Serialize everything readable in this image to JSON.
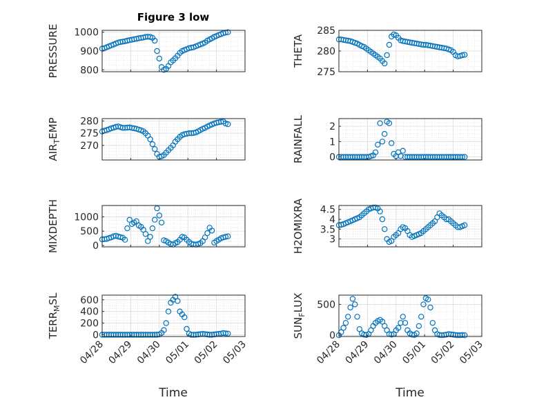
{
  "figure_title": "Figure 3 low",
  "xlabel": "Time",
  "x_tick_labels": [
    "04/28",
    "04/29",
    "04/30",
    "05/01",
    "05/02",
    "05/03"
  ],
  "marker_color": "#0072BD",
  "chart_data": [
    {
      "type": "scatter",
      "name": "PRESSURE",
      "ylabel": "PRESSURE",
      "xlim": [
        0,
        5
      ],
      "ylim": [
        790,
        1010
      ],
      "yticks": [
        800,
        900,
        1000
      ],
      "x": [
        0.0,
        0.08,
        0.16,
        0.24,
        0.32,
        0.4,
        0.48,
        0.56,
        0.64,
        0.72,
        0.8,
        0.88,
        0.96,
        1.04,
        1.12,
        1.2,
        1.28,
        1.36,
        1.44,
        1.52,
        1.6,
        1.68,
        1.76,
        1.84,
        1.92,
        2.0,
        2.08,
        2.16,
        2.24,
        2.32,
        2.4,
        2.48,
        2.56,
        2.64,
        2.72,
        2.8,
        2.88,
        2.96,
        3.04,
        3.12,
        3.2,
        3.28,
        3.36,
        3.44,
        3.52,
        3.6,
        3.68,
        3.76,
        3.84,
        3.92,
        4.0,
        4.08,
        4.16,
        4.24,
        4.32,
        4.4
      ],
      "y": [
        913,
        915,
        920,
        925,
        930,
        935,
        940,
        945,
        948,
        950,
        952,
        955,
        958,
        960,
        963,
        965,
        968,
        970,
        972,
        975,
        976,
        975,
        970,
        955,
        900,
        860,
        815,
        800,
        805,
        820,
        840,
        850,
        862,
        875,
        890,
        900,
        905,
        910,
        915,
        918,
        920,
        925,
        930,
        935,
        940,
        945,
        955,
        962,
        968,
        975,
        980,
        985,
        990,
        995,
        998,
        1000
      ]
    },
    {
      "type": "scatter",
      "name": "THETA",
      "ylabel": "THETA",
      "xlim": [
        0,
        5
      ],
      "ylim": [
        275,
        285
      ],
      "yticks": [
        275,
        280,
        285
      ],
      "x": [
        0.0,
        0.08,
        0.16,
        0.24,
        0.32,
        0.4,
        0.48,
        0.56,
        0.64,
        0.72,
        0.8,
        0.88,
        0.96,
        1.04,
        1.12,
        1.2,
        1.28,
        1.36,
        1.44,
        1.52,
        1.6,
        1.68,
        1.76,
        1.84,
        1.92,
        2.0,
        2.08,
        2.16,
        2.24,
        2.32,
        2.4,
        2.48,
        2.56,
        2.64,
        2.72,
        2.8,
        2.88,
        2.96,
        3.04,
        3.12,
        3.2,
        3.28,
        3.36,
        3.44,
        3.52,
        3.6,
        3.68,
        3.76,
        3.84,
        3.92,
        4.0,
        4.08,
        4.16,
        4.24,
        4.32,
        4.4
      ],
      "y": [
        282.8,
        282.8,
        282.7,
        282.6,
        282.5,
        282.4,
        282.2,
        282.0,
        281.8,
        281.5,
        281.2,
        281.0,
        280.6,
        280.2,
        279.8,
        279.4,
        279.0,
        278.6,
        278.2,
        277.6,
        277.0,
        279.0,
        281.5,
        283.5,
        284.0,
        283.8,
        283.2,
        282.6,
        282.4,
        282.3,
        282.2,
        282.1,
        282.0,
        281.9,
        281.8,
        281.7,
        281.6,
        281.5,
        281.5,
        281.4,
        281.3,
        281.2,
        281.1,
        281.0,
        280.9,
        280.8,
        280.7,
        280.6,
        280.4,
        280.2,
        279.8,
        279.0,
        278.7,
        278.8,
        279.0,
        279.1
      ]
    },
    {
      "type": "scatter",
      "name": "AIR_TEMP",
      "ylabel": "AIR_TEMP",
      "xlim": [
        0,
        5
      ],
      "ylim": [
        264,
        281
      ],
      "yticks": [
        270,
        275,
        280
      ],
      "x": [
        0.0,
        0.08,
        0.16,
        0.24,
        0.32,
        0.4,
        0.48,
        0.56,
        0.64,
        0.72,
        0.8,
        0.88,
        0.96,
        1.04,
        1.12,
        1.2,
        1.28,
        1.36,
        1.44,
        1.52,
        1.6,
        1.68,
        1.76,
        1.84,
        1.92,
        2.0,
        2.08,
        2.16,
        2.24,
        2.32,
        2.4,
        2.48,
        2.56,
        2.64,
        2.72,
        2.8,
        2.88,
        2.96,
        3.04,
        3.12,
        3.2,
        3.28,
        3.36,
        3.44,
        3.52,
        3.6,
        3.68,
        3.76,
        3.84,
        3.92,
        4.0,
        4.08,
        4.16,
        4.24,
        4.32,
        4.4
      ],
      "y": [
        275.7,
        276.0,
        276.3,
        276.6,
        277.0,
        277.3,
        277.6,
        277.8,
        277.5,
        277.2,
        277.2,
        277.3,
        277.4,
        277.2,
        277.0,
        276.8,
        276.5,
        276.2,
        275.8,
        275.0,
        274.0,
        272.5,
        270.5,
        268.5,
        266.5,
        265.3,
        265.5,
        266.0,
        267.0,
        268.0,
        269.0,
        270.0,
        271.5,
        272.5,
        273.5,
        274.2,
        274.6,
        274.8,
        275.0,
        275.0,
        275.1,
        275.3,
        275.8,
        276.3,
        276.8,
        277.2,
        277.7,
        278.2,
        278.6,
        279.0,
        279.3,
        279.5,
        279.7,
        279.8,
        279.0,
        278.7
      ]
    },
    {
      "type": "scatter",
      "name": "RAINFALL",
      "ylabel": "RAINFALL",
      "xlim": [
        0,
        5
      ],
      "ylim": [
        -0.2,
        2.5
      ],
      "yticks": [
        0,
        1,
        2
      ],
      "x": [
        0.0,
        0.08,
        0.16,
        0.24,
        0.32,
        0.4,
        0.48,
        0.56,
        0.64,
        0.72,
        0.8,
        0.88,
        0.96,
        1.04,
        1.12,
        1.2,
        1.28,
        1.36,
        1.44,
        1.52,
        1.6,
        1.68,
        1.76,
        1.84,
        1.92,
        2.0,
        2.08,
        2.16,
        2.24,
        2.32,
        2.4,
        2.48,
        2.56,
        2.64,
        2.72,
        2.8,
        2.88,
        2.96,
        3.04,
        3.12,
        3.2,
        3.28,
        3.36,
        3.44,
        3.52,
        3.6,
        3.68,
        3.76,
        3.84,
        3.92,
        4.0,
        4.08,
        4.16,
        4.24,
        4.32,
        4.4
      ],
      "y": [
        0,
        0,
        0,
        0,
        0,
        0,
        0,
        0,
        0,
        0,
        0,
        0,
        0,
        0,
        0.05,
        0.1,
        0.3,
        0.8,
        2.2,
        1.0,
        1.5,
        2.3,
        2.2,
        0.9,
        0.2,
        0.05,
        0.3,
        0.05,
        0.4,
        0,
        0,
        0,
        0,
        0,
        0,
        0,
        0,
        0,
        0,
        0,
        0,
        0,
        0,
        0,
        0,
        0,
        0,
        0,
        0,
        0,
        0,
        0,
        0,
        0,
        0,
        0
      ]
    },
    {
      "type": "scatter",
      "name": "MIXDEPTH",
      "ylabel": "MIXDEPTH",
      "xlim": [
        0,
        5
      ],
      "ylim": [
        -50,
        1400
      ],
      "yticks": [
        0,
        500,
        1000
      ],
      "x": [
        0.0,
        0.08,
        0.16,
        0.24,
        0.32,
        0.4,
        0.48,
        0.56,
        0.64,
        0.72,
        0.8,
        0.88,
        0.96,
        1.04,
        1.12,
        1.2,
        1.28,
        1.36,
        1.44,
        1.52,
        1.6,
        1.68,
        1.76,
        1.84,
        1.92,
        2.0,
        2.08,
        2.16,
        2.24,
        2.32,
        2.4,
        2.48,
        2.56,
        2.64,
        2.72,
        2.8,
        2.88,
        2.96,
        3.04,
        3.12,
        3.2,
        3.28,
        3.36,
        3.44,
        3.52,
        3.6,
        3.68,
        3.76,
        3.84,
        3.92,
        4.0,
        4.08,
        4.16,
        4.24,
        4.32,
        4.4
      ],
      "y": [
        210,
        220,
        230,
        260,
        280,
        320,
        340,
        310,
        290,
        270,
        200,
        600,
        900,
        750,
        800,
        850,
        700,
        650,
        550,
        400,
        150,
        300,
        600,
        900,
        1300,
        1050,
        800,
        180,
        150,
        100,
        50,
        30,
        80,
        120,
        200,
        300,
        280,
        200,
        120,
        60,
        40,
        30,
        50,
        80,
        150,
        280,
        430,
        620,
        520,
        100,
        150,
        200,
        250,
        280,
        300,
        320
      ]
    },
    {
      "type": "scatter",
      "name": "H2OMIXRA",
      "ylabel": "H2OMIXRA",
      "xlim": [
        0,
        5
      ],
      "ylim": [
        2.6,
        4.7
      ],
      "yticks": [
        3,
        3.5,
        4,
        4.5
      ],
      "x": [
        0.0,
        0.08,
        0.16,
        0.24,
        0.32,
        0.4,
        0.48,
        0.56,
        0.64,
        0.72,
        0.8,
        0.88,
        0.96,
        1.04,
        1.12,
        1.2,
        1.28,
        1.36,
        1.44,
        1.52,
        1.6,
        1.68,
        1.76,
        1.84,
        1.92,
        2.0,
        2.08,
        2.16,
        2.24,
        2.32,
        2.4,
        2.48,
        2.56,
        2.64,
        2.72,
        2.8,
        2.88,
        2.96,
        3.04,
        3.12,
        3.2,
        3.28,
        3.36,
        3.44,
        3.52,
        3.6,
        3.68,
        3.76,
        3.84,
        3.92,
        4.0,
        4.08,
        4.16,
        4.24,
        4.32,
        4.4
      ],
      "y": [
        3.7,
        3.72,
        3.75,
        3.8,
        3.85,
        3.9,
        3.95,
        4.0,
        4.05,
        4.1,
        4.2,
        4.3,
        4.4,
        4.5,
        4.55,
        4.6,
        4.6,
        4.55,
        4.4,
        4.0,
        3.5,
        3.0,
        2.85,
        2.9,
        3.1,
        3.2,
        3.3,
        3.5,
        3.6,
        3.55,
        3.4,
        3.2,
        3.1,
        3.15,
        3.2,
        3.25,
        3.3,
        3.4,
        3.5,
        3.6,
        3.7,
        3.8,
        3.9,
        4.1,
        4.3,
        4.2,
        4.1,
        4.0,
        4.0,
        3.9,
        3.8,
        3.7,
        3.6,
        3.6,
        3.65,
        3.7
      ]
    },
    {
      "type": "scatter",
      "name": "TERR_MSL",
      "ylabel": "TERR_MSL",
      "xlim": [
        0,
        5
      ],
      "ylim": [
        -30,
        680
      ],
      "yticks": [
        0,
        200,
        400,
        600
      ],
      "x": [
        0.0,
        0.08,
        0.16,
        0.24,
        0.32,
        0.4,
        0.48,
        0.56,
        0.64,
        0.72,
        0.8,
        0.88,
        0.96,
        1.04,
        1.12,
        1.2,
        1.28,
        1.36,
        1.44,
        1.52,
        1.6,
        1.68,
        1.76,
        1.84,
        1.92,
        2.0,
        2.08,
        2.16,
        2.24,
        2.32,
        2.4,
        2.48,
        2.56,
        2.64,
        2.72,
        2.8,
        2.88,
        2.96,
        3.04,
        3.12,
        3.2,
        3.28,
        3.36,
        3.44,
        3.52,
        3.6,
        3.68,
        3.76,
        3.84,
        3.92,
        4.0,
        4.08,
        4.16,
        4.24,
        4.32,
        4.4
      ],
      "y": [
        0,
        0,
        0,
        0,
        0,
        0,
        0,
        0,
        0,
        0,
        0,
        0,
        0,
        0,
        0,
        0,
        0,
        0,
        0,
        0,
        0,
        0,
        0,
        0,
        0,
        5,
        30,
        80,
        200,
        400,
        550,
        600,
        650,
        580,
        400,
        350,
        300,
        100,
        20,
        0,
        0,
        0,
        5,
        10,
        15,
        10,
        5,
        0,
        0,
        5,
        10,
        15,
        20,
        30,
        25,
        20
      ]
    },
    {
      "type": "scatter",
      "name": "SUN_FLUX",
      "ylabel": "SUN_FLUX",
      "xlim": [
        0,
        5
      ],
      "ylim": [
        -20,
        650
      ],
      "yticks": [
        0,
        500
      ],
      "x": [
        0.0,
        0.08,
        0.16,
        0.24,
        0.32,
        0.4,
        0.48,
        0.56,
        0.64,
        0.72,
        0.8,
        0.88,
        0.96,
        1.04,
        1.12,
        1.2,
        1.28,
        1.36,
        1.44,
        1.52,
        1.6,
        1.68,
        1.76,
        1.84,
        1.92,
        2.0,
        2.08,
        2.16,
        2.24,
        2.32,
        2.4,
        2.48,
        2.56,
        2.64,
        2.72,
        2.8,
        2.88,
        2.96,
        3.04,
        3.12,
        3.2,
        3.28,
        3.36,
        3.44,
        3.52,
        3.6,
        3.68,
        3.76,
        3.84,
        3.92,
        4.0,
        4.08,
        4.16,
        4.24,
        4.32,
        4.4
      ],
      "y": [
        0,
        50,
        120,
        200,
        300,
        450,
        590,
        500,
        300,
        100,
        30,
        10,
        5,
        20,
        80,
        150,
        200,
        230,
        250,
        220,
        150,
        80,
        20,
        10,
        20,
        80,
        120,
        200,
        300,
        200,
        80,
        30,
        10,
        5,
        30,
        150,
        300,
        500,
        600,
        580,
        450,
        200,
        80,
        20,
        5,
        0,
        5,
        10,
        20,
        15,
        10,
        5,
        0,
        0,
        5,
        0
      ]
    }
  ]
}
